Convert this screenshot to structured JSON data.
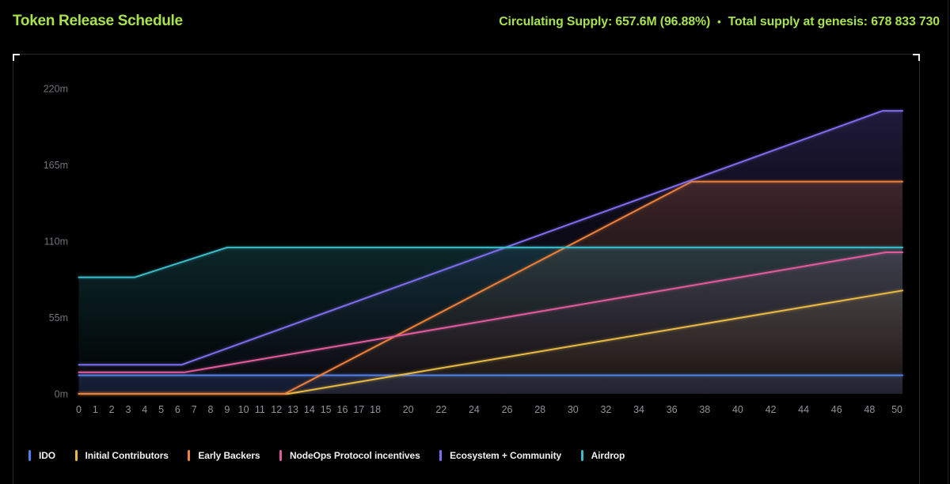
{
  "header": {
    "title": "Token Release Schedule",
    "stats": {
      "circulating": "Circulating Supply: 657.6M (96.88%)",
      "separator": "•",
      "genesis": "Total supply at genesis: 678 833 730"
    },
    "accent_color": "#a7e24c"
  },
  "chart_data": {
    "type": "area",
    "title": "Token Release Schedule",
    "xlabel": "",
    "ylabel": "",
    "xlim": [
      0,
      50
    ],
    "ylim": [
      0,
      235
    ],
    "grid": false,
    "legend_position": "bottom",
    "x_ticks": [
      0,
      1,
      2,
      3,
      4,
      5,
      6,
      7,
      8,
      9,
      10,
      11,
      12,
      13,
      14,
      15,
      16,
      17,
      18,
      20,
      22,
      24,
      26,
      28,
      30,
      32,
      34,
      36,
      38,
      40,
      42,
      44,
      46,
      48,
      50
    ],
    "y_ticks": [
      {
        "label": "0m",
        "value": 0
      },
      {
        "label": "55m",
        "value": 55
      },
      {
        "label": "110m",
        "value": 110
      },
      {
        "label": "165m",
        "value": 165
      },
      {
        "label": "220m",
        "value": 220
      }
    ],
    "unit": "millions of tokens",
    "series": [
      {
        "name": "IDO",
        "color": "#4f7fe8",
        "points": [
          [
            0,
            13.4
          ],
          [
            50,
            13.4
          ]
        ]
      },
      {
        "name": "Initial Contributors",
        "color": "#eaba45",
        "points": [
          [
            0,
            0
          ],
          [
            12.7,
            0
          ],
          [
            50,
            74.5
          ]
        ]
      },
      {
        "name": "Early Backers",
        "color": "#f08038",
        "points": [
          [
            0,
            0
          ],
          [
            12.5,
            0
          ],
          [
            37.2,
            153
          ],
          [
            50,
            153
          ]
        ]
      },
      {
        "name": "NodeOps Protocol incentives",
        "color": "#e05a9e",
        "points": [
          [
            0,
            15.5
          ],
          [
            6.4,
            15.5
          ],
          [
            49,
            102
          ],
          [
            50,
            102
          ]
        ]
      },
      {
        "name": "Ecosystem + Community",
        "color": "#7f6cee",
        "points": [
          [
            0,
            21
          ],
          [
            6.25,
            21
          ],
          [
            48.8,
            204
          ],
          [
            50,
            204
          ]
        ]
      },
      {
        "name": "Airdrop",
        "color": "#3bbcca",
        "points": [
          [
            0,
            84
          ],
          [
            3.4,
            84
          ],
          [
            9,
            105.5
          ],
          [
            50,
            105.5
          ]
        ]
      }
    ]
  }
}
